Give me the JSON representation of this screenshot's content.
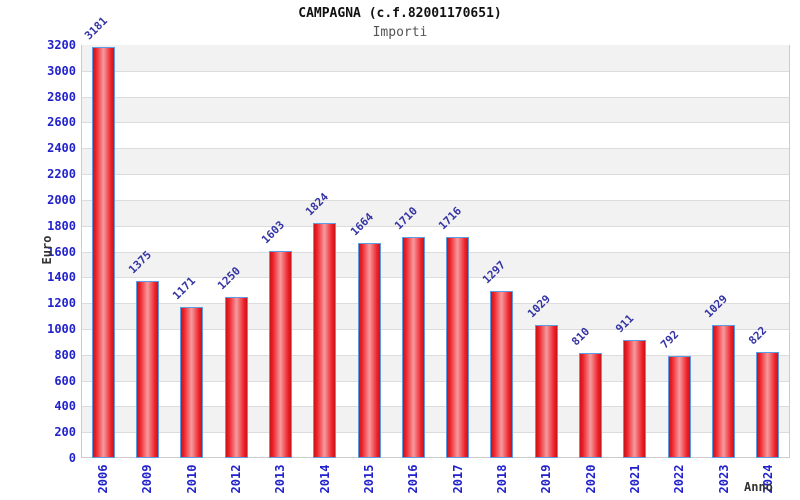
{
  "header": {
    "title": "CAMPAGNA (c.f.82001170651)",
    "subtitle": "Importi"
  },
  "chart_data": {
    "type": "bar",
    "title": "CAMPAGNA (c.f.82001170651)",
    "subtitle": "Importi",
    "xlabel": "Anno",
    "ylabel": "Euro",
    "categories": [
      "2006",
      "2009",
      "2010",
      "2012",
      "2013",
      "2014",
      "2015",
      "2016",
      "2017",
      "2018",
      "2019",
      "2020",
      "2021",
      "2022",
      "2023",
      "2024"
    ],
    "values": [
      3181,
      1375,
      1171,
      1250,
      1603,
      1824,
      1664,
      1710,
      1716,
      1297,
      1029,
      810,
      911,
      792,
      1029,
      822
    ],
    "ylim": [
      0,
      3200
    ],
    "ytick_step": 200,
    "yticks": [
      0,
      200,
      400,
      600,
      800,
      1000,
      1200,
      1400,
      1600,
      1800,
      2000,
      2200,
      2400,
      2600,
      2800,
      3000,
      3200
    ],
    "grid": true,
    "legend": false,
    "background_stripes": true,
    "colors": {
      "bar_fill_edge": "#c8151b",
      "bar_fill_bright": "#ee2128",
      "bar_fill_center": "#f59a9e",
      "bar_border": "#5d9ce0",
      "tick_label": "#2222cc",
      "value_label": "#3434a4",
      "axis_title": "#333333",
      "stripe": "#f2f2f2",
      "gridline": "#dcdcdc",
      "plot_border": "#cccccc",
      "subtitle": "#555555",
      "title": "#111111"
    }
  }
}
